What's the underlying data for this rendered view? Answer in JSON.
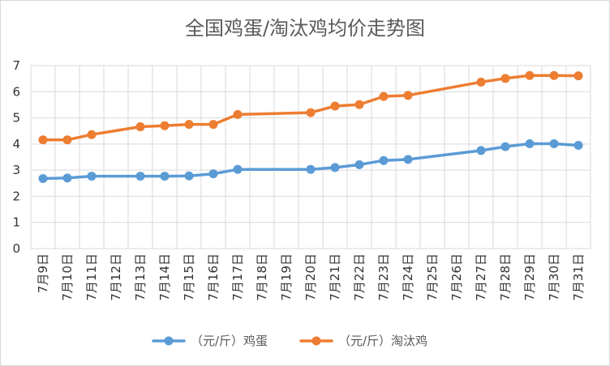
{
  "chart_data": {
    "type": "line",
    "title": "全国鸡蛋/淘汰鸡均价走势图",
    "xlabel": "",
    "ylabel": "",
    "ylim": [
      0,
      7
    ],
    "yticks": [
      "0",
      "1",
      "2",
      "3",
      "4",
      "5",
      "6",
      "7"
    ],
    "grid": true,
    "legend_position": "bottom",
    "categories": [
      "7月9日",
      "7月10日",
      "7月11日",
      "7月12日",
      "7月13日",
      "7月14日",
      "7月15日",
      "7月16日",
      "7月17日",
      "7月18日",
      "7月19日",
      "7月20日",
      "7月21日",
      "7月22日",
      "7月23日",
      "7月24日",
      "7月25日",
      "7月26日",
      "7月27日",
      "7月28日",
      "7月29日",
      "7月30日",
      "7月31日"
    ],
    "series": [
      {
        "name": "（元/斤）鸡蛋",
        "color": "#5B9BD5",
        "values": [
          2.68,
          2.7,
          2.77,
          null,
          2.77,
          2.77,
          2.78,
          2.86,
          3.03,
          null,
          null,
          3.03,
          3.1,
          3.21,
          3.37,
          3.41,
          null,
          null,
          3.75,
          3.9,
          4.01,
          4.01,
          3.95
        ]
      },
      {
        "name": "（元/斤）淘汰鸡",
        "color": "#ED7D31",
        "values": [
          4.16,
          4.16,
          4.36,
          null,
          4.66,
          4.7,
          4.75,
          4.75,
          5.13,
          null,
          null,
          5.2,
          5.45,
          5.51,
          5.82,
          5.86,
          null,
          null,
          6.37,
          6.51,
          6.62,
          6.62,
          6.61
        ]
      }
    ]
  }
}
